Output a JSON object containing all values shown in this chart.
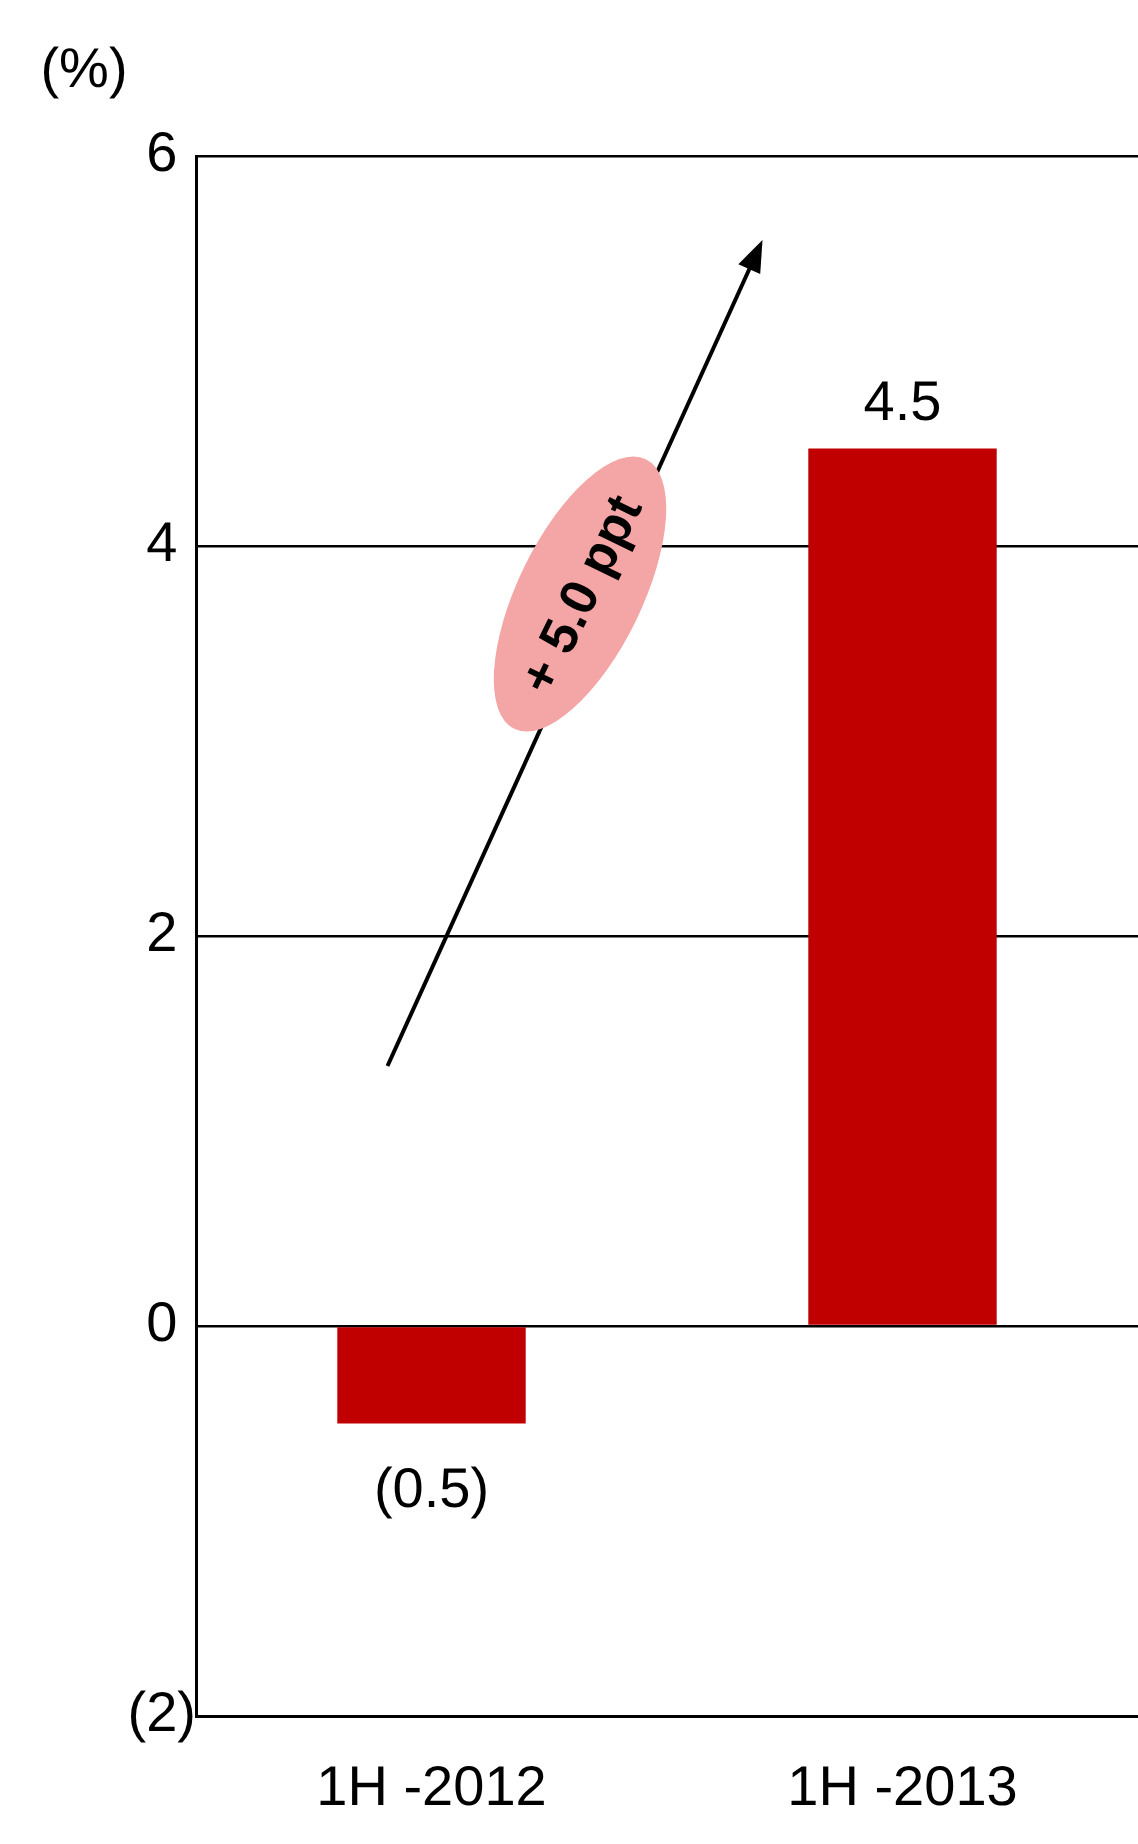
{
  "chart_data": {
    "type": "bar",
    "ylabel": "(%)",
    "categories": [
      "1H -2012",
      "1H -2013"
    ],
    "values": [
      -0.5,
      4.5
    ],
    "color": "#c00000",
    "value_labels": [
      "(0.5)",
      "4.5"
    ],
    "ylim": [
      -2,
      6
    ],
    "yticks": [
      {
        "value": -2,
        "label": "(2)"
      },
      0,
      2,
      4,
      6
    ],
    "grid": "y",
    "annotations": [
      "+ 5.0 ppt"
    ]
  }
}
